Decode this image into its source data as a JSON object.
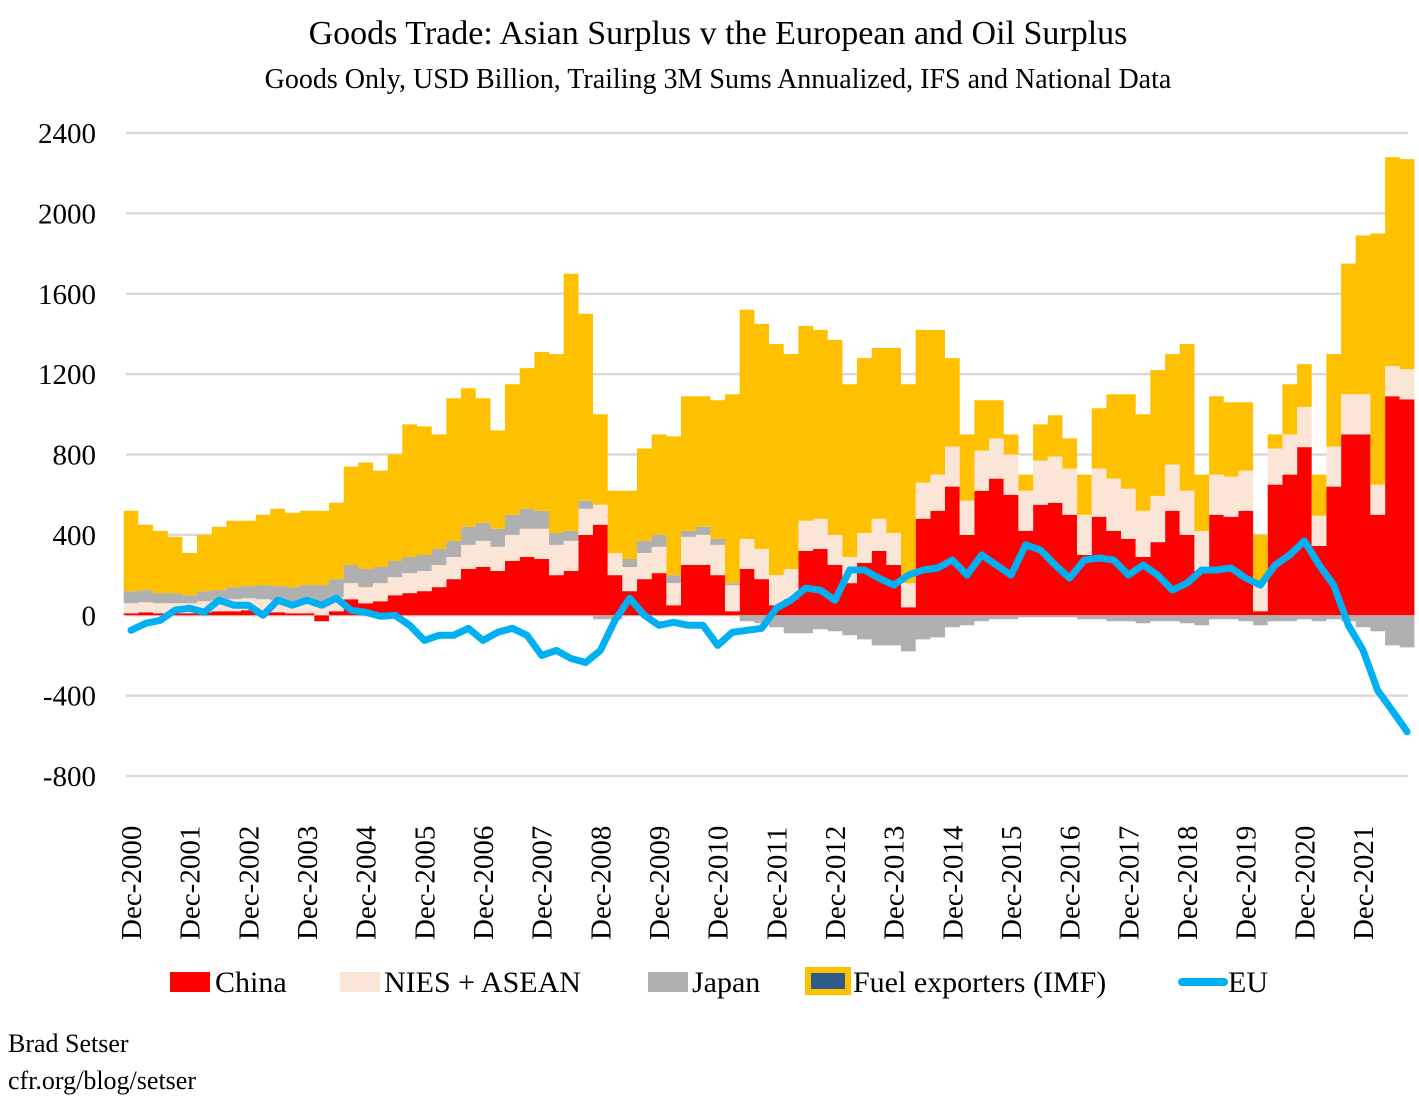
{
  "chart_data": {
    "type": "area",
    "title": "Goods Trade: Asian Surplus v the European and Oil Surplus",
    "subtitle": "Goods Only, USD Billion, Trailing 3M Sums Annualized, IFS and National Data",
    "ylim": [
      -800,
      2400
    ],
    "yticks": [
      "2400",
      "2000",
      "1600",
      "1200",
      "800",
      "400",
      "0",
      "-400",
      "-800"
    ],
    "xticks": [
      "Dec-2000",
      "Dec-2001",
      "Dec-2002",
      "Dec-2003",
      "Dec-2004",
      "Dec-2005",
      "Dec-2006",
      "Dec-2007",
      "Dec-2008",
      "Dec-2009",
      "Dec-2010",
      "Dec-2011",
      "Dec-2012",
      "Dec-2013",
      "Dec-2014",
      "Dec-2015",
      "Dec-2016",
      "Dec-2017",
      "Dec-2018",
      "Dec-2019",
      "Dec-2020",
      "Dec-2021"
    ],
    "grid": true,
    "legend_position": "bottom",
    "x": [
      "2000-12",
      "2001-03",
      "2001-06",
      "2001-09",
      "2001-12",
      "2002-03",
      "2002-06",
      "2002-09",
      "2002-12",
      "2003-03",
      "2003-06",
      "2003-09",
      "2003-12",
      "2004-03",
      "2004-06",
      "2004-09",
      "2004-12",
      "2005-03",
      "2005-06",
      "2005-09",
      "2005-12",
      "2006-03",
      "2006-06",
      "2006-09",
      "2006-12",
      "2007-03",
      "2007-06",
      "2007-09",
      "2007-12",
      "2008-03",
      "2008-06",
      "2008-09",
      "2008-12",
      "2009-03",
      "2009-06",
      "2009-09",
      "2009-12",
      "2010-03",
      "2010-06",
      "2010-09",
      "2010-12",
      "2011-03",
      "2011-06",
      "2011-09",
      "2011-12",
      "2012-03",
      "2012-06",
      "2012-09",
      "2012-12",
      "2013-03",
      "2013-06",
      "2013-09",
      "2013-12",
      "2014-03",
      "2014-06",
      "2014-09",
      "2014-12",
      "2015-03",
      "2015-06",
      "2015-09",
      "2015-12",
      "2016-03",
      "2016-06",
      "2016-09",
      "2016-12",
      "2017-03",
      "2017-06",
      "2017-09",
      "2017-12",
      "2018-03",
      "2018-06",
      "2018-09",
      "2018-12",
      "2019-03",
      "2019-06",
      "2019-09",
      "2019-12",
      "2020-03",
      "2020-06",
      "2020-09",
      "2020-12",
      "2021-03",
      "2021-06",
      "2021-09",
      "2021-12",
      "2022-03",
      "2022-06",
      "2022-09"
    ],
    "series": [
      {
        "name": "China",
        "kind": "stacked-area",
        "color": "#ff0000",
        "values": [
          10,
          15,
          10,
          10,
          10,
          15,
          20,
          20,
          25,
          20,
          15,
          10,
          10,
          -30,
          20,
          80,
          60,
          70,
          100,
          110,
          120,
          140,
          180,
          230,
          240,
          220,
          270,
          290,
          280,
          200,
          220,
          400,
          450,
          200,
          120,
          180,
          210,
          50,
          250,
          250,
          200,
          20,
          230,
          180,
          50,
          80,
          320,
          330,
          250,
          160,
          260,
          320,
          250,
          40,
          480,
          520,
          640,
          400,
          620,
          680,
          600,
          420,
          550,
          560,
          500,
          300,
          490,
          420,
          380,
          290,
          364,
          520,
          400,
          220,
          500,
          490,
          520,
          20,
          650,
          700,
          837,
          345,
          640,
          900,
          900,
          500,
          1090,
          1074
        ]
      },
      {
        "name": "NIES + ASEAN",
        "kind": "stacked-area",
        "color": "#fbe5d6",
        "values": [
          50,
          50,
          50,
          50,
          50,
          55,
          55,
          60,
          60,
          60,
          60,
          60,
          60,
          70,
          70,
          80,
          80,
          90,
          90,
          100,
          100,
          110,
          110,
          120,
          130,
          120,
          130,
          140,
          150,
          150,
          150,
          130,
          100,
          110,
          120,
          130,
          130,
          110,
          140,
          150,
          150,
          130,
          150,
          150,
          150,
          150,
          150,
          150,
          150,
          130,
          150,
          160,
          160,
          120,
          180,
          180,
          200,
          170,
          200,
          200,
          200,
          200,
          220,
          230,
          230,
          200,
          240,
          260,
          250,
          230,
          230,
          230,
          220,
          200,
          200,
          200,
          200,
          150,
          180,
          200,
          200,
          150,
          200,
          200,
          200,
          150,
          150,
          150
        ]
      },
      {
        "name": "Japan",
        "kind": "stacked-area",
        "color": "#b0b0b0",
        "values": [
          60,
          60,
          50,
          50,
          40,
          50,
          50,
          60,
          60,
          70,
          70,
          70,
          80,
          80,
          90,
          90,
          90,
          80,
          80,
          80,
          80,
          80,
          80,
          90,
          90,
          90,
          100,
          100,
          90,
          60,
          50,
          40,
          -20,
          -20,
          40,
          60,
          60,
          40,
          30,
          40,
          30,
          10,
          -30,
          -40,
          -60,
          -90,
          -90,
          -70,
          -80,
          -100,
          -120,
          -150,
          -150,
          -180,
          -120,
          -110,
          -60,
          -50,
          -30,
          -20,
          -20,
          -10,
          -10,
          -10,
          -10,
          -20,
          -20,
          -30,
          -30,
          -40,
          -30,
          -30,
          -40,
          -50,
          -20,
          -20,
          -30,
          -50,
          -30,
          -30,
          -20,
          -30,
          -20,
          -30,
          -60,
          -80,
          -150,
          -160
        ]
      },
      {
        "name": "Fuel exporters (IMF)",
        "kind": "stacked-area",
        "color": "#ffc000",
        "legend_inner_color": "#2f5b8c",
        "values": [
          400,
          325,
          310,
          280,
          210,
          280,
          315,
          330,
          325,
          350,
          385,
          370,
          370,
          370,
          380,
          490,
          530,
          480,
          530,
          660,
          640,
          570,
          710,
          690,
          620,
          490,
          650,
          700,
          790,
          890,
          1280,
          930,
          450,
          310,
          340,
          460,
          500,
          690,
          670,
          650,
          690,
          940,
          1140,
          1120,
          1150,
          1070,
          970,
          940,
          970,
          860,
          870,
          850,
          920,
          990,
          760,
          720,
          440,
          330,
          250,
          190,
          100,
          80,
          180,
          205,
          150,
          200,
          300,
          420,
          470,
          480,
          626,
          550,
          730,
          280,
          390,
          370,
          340,
          230,
          70,
          250,
          213,
          205,
          460,
          650,
          790,
          1250,
          1040,
          1046
        ]
      },
      {
        "name": "EU",
        "kind": "line",
        "color": "#00b0f0",
        "values": [
          -75,
          -40,
          -25,
          25,
          35,
          15,
          75,
          50,
          50,
          0,
          75,
          50,
          75,
          50,
          85,
          25,
          15,
          -5,
          0,
          -50,
          -125,
          -100,
          -100,
          -65,
          -125,
          -85,
          -65,
          -100,
          -200,
          -175,
          -215,
          -235,
          -175,
          -25,
          85,
          0,
          -50,
          -35,
          -50,
          -50,
          -150,
          -85,
          -75,
          -65,
          35,
          75,
          135,
          125,
          75,
          225,
          225,
          185,
          150,
          200,
          225,
          235,
          275,
          200,
          300,
          250,
          200,
          350,
          325,
          250,
          185,
          275,
          285,
          275,
          200,
          250,
          200,
          125,
          160,
          225,
          225,
          235,
          185,
          150,
          250,
          300,
          370,
          250,
          150,
          -50,
          -175,
          -375,
          -475,
          -580
        ]
      }
    ]
  },
  "legend": {
    "china": "China",
    "nies": "NIES + ASEAN",
    "japan": "Japan",
    "fuel": "Fuel exporters (IMF)",
    "eu": "EU"
  },
  "credits": {
    "author": "Brad Setser",
    "site": "cfr.org/blog/setser"
  }
}
